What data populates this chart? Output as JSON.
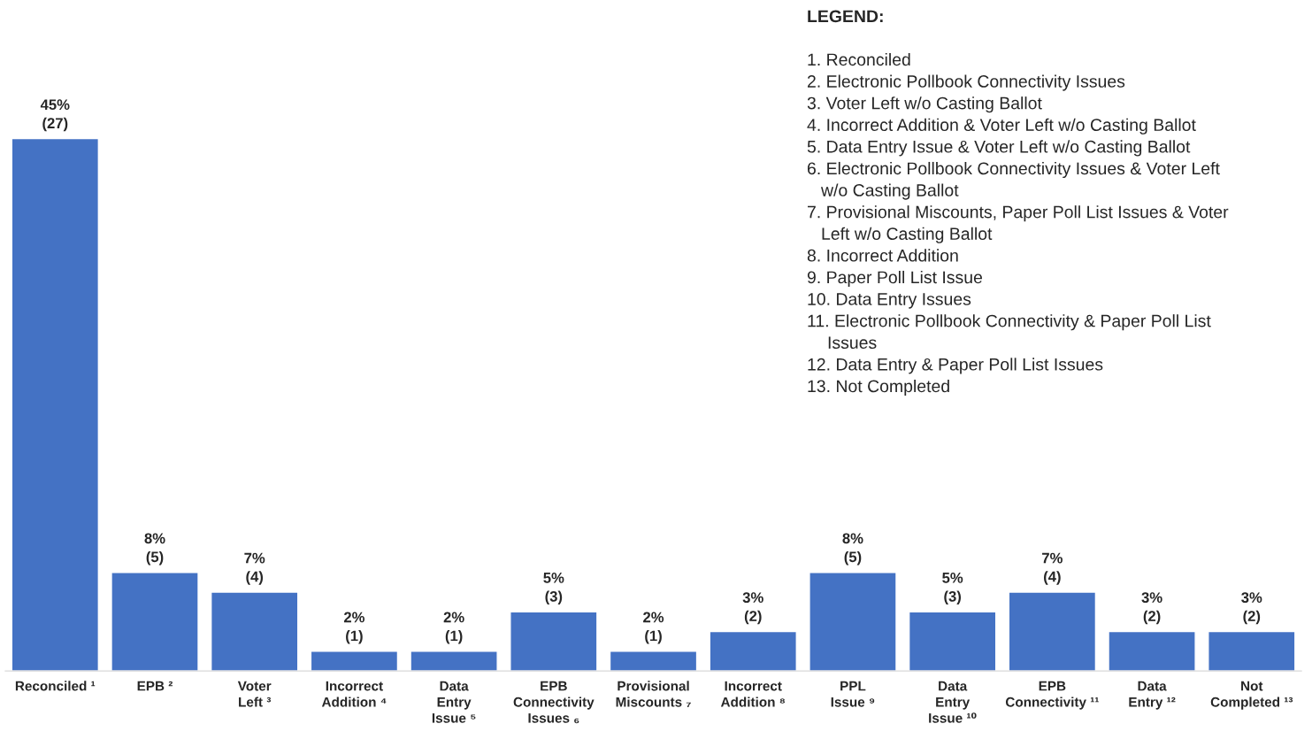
{
  "chart_data": {
    "type": "bar",
    "title": "LEGEND:",
    "categories": [
      "Reconciled ¹",
      "EPB ²",
      "Voter\nLeft ³",
      "Incorrect\nAddition ⁴",
      "Data\nEntry\nIssue ⁵",
      "EPB\nConnectivity\nIssues ₆",
      "Provisional\nMiscounts ₇",
      "Incorrect\nAddition ⁸",
      "PPL\nIssue ⁹",
      "Data\nEntry\nIssue ¹⁰",
      "EPB\nConnectivity ¹¹",
      "Data\nEntry ¹²",
      "Not\nCompleted ¹³"
    ],
    "values": [
      27,
      5,
      4,
      1,
      1,
      3,
      1,
      2,
      5,
      3,
      4,
      2,
      2
    ],
    "value_labels": [
      "45%\n(27)",
      "8%\n(5)",
      "7%\n(4)",
      "2%\n(1)",
      "2%\n(1)",
      "5%\n(3)",
      "2%\n(1)",
      "3%\n(2)",
      "8%\n(5)",
      "5%\n(3)",
      "7%\n(4)",
      "3%\n(2)",
      "3%\n(2)"
    ],
    "color": "#4472c4",
    "annotations": [
      "1. Reconciled",
      "2. Electronic Pollbook Connectivity Issues",
      "3. Voter Left w/o Casting Ballot",
      "4. Incorrect Addition & Voter Left w/o Casting Ballot",
      "5. Data Entry Issue & Voter Left w/o Casting Ballot",
      "6. Electronic Pollbook Connectivity Issues & Voter Left\nw/o Casting Ballot",
      "7. Provisional Miscounts, Paper Poll List Issues & Voter\nLeft w/o Casting Ballot",
      "8. Incorrect Addition",
      "9. Paper Poll List Issue",
      "10. Data Entry Issues",
      "11. Electronic Pollbook Connectivity & Paper Poll List\nIssues",
      "12. Data Entry & Paper Poll List Issues",
      "13. Not Completed"
    ],
    "grid": false,
    "legend": false
  }
}
